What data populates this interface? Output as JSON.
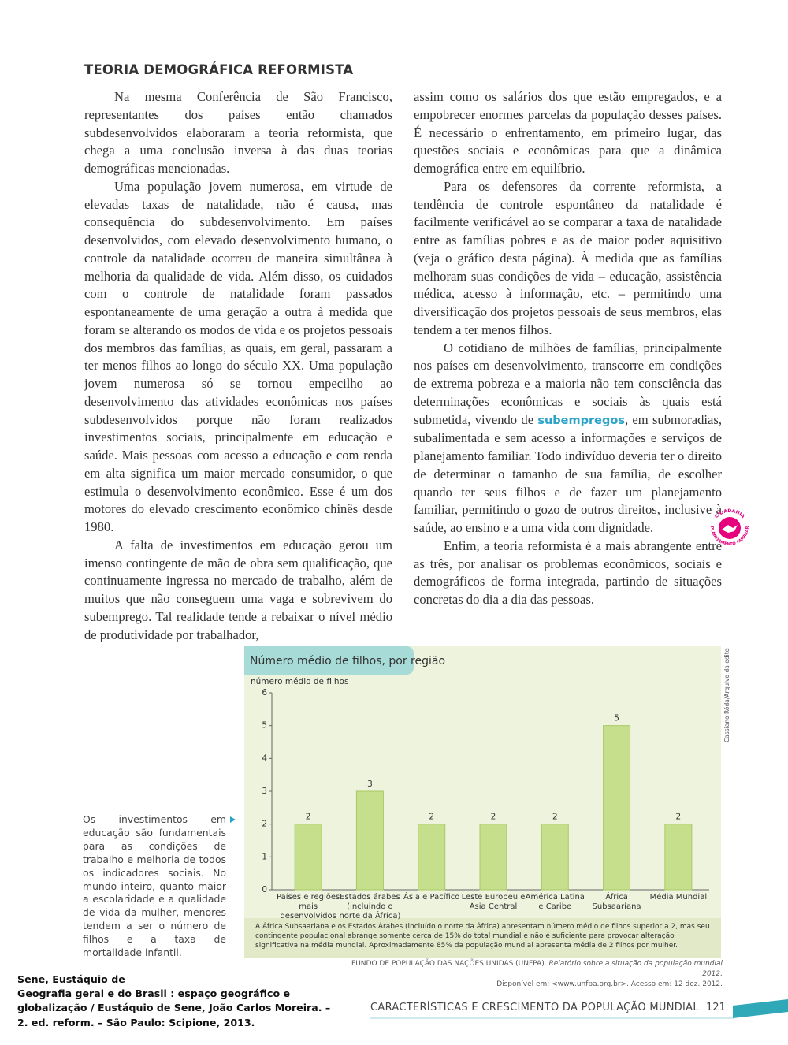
{
  "section_title": "TEORIA DEMOGRÁFICA REFORMISTA",
  "left_column": {
    "paragraphs": [
      "Na mesma Conferência de São Francisco, representantes dos países então chamados subdesenvolvidos elaboraram a teoria reformista, que chega a uma conclusão inversa à das duas teorias demográficas mencionadas.",
      "Uma população jovem numerosa, em virtude de elevadas taxas de natalidade, não é causa, mas consequência do subdesenvolvimento. Em países desenvolvidos, com elevado desenvolvimento humano, o controle da natalidade ocorreu de maneira simultânea à melhoria da qualidade de vida. Além disso, os cuidados com o controle de natalidade foram passados espontaneamente de uma geração a outra à medida que foram se alterando os modos de vida e os projetos pessoais dos membros das famílias, as quais, em geral, passaram a ter menos filhos ao longo do século XX. Uma população jovem numerosa só se tornou empecilho ao desenvolvimento das atividades econômicas nos países subdesenvolvidos porque não foram realizados investimentos sociais, principalmente em educação e saúde. Mais pessoas com acesso a educação e com renda em alta significa um maior mercado consumidor, o que estimula o desenvolvimento econômico. Esse é um dos motores do elevado crescimento econômico chinês desde 1980.",
      "A falta de investimentos em educação gerou um imenso contingente de mão de obra sem qualificação, que continuamente ingressa no mercado de trabalho, além de muitos que não conseguem uma vaga e sobrevivem do subemprego. Tal realidade tende a rebaixar o nível médio de produtividade por trabalhador,"
    ]
  },
  "right_column": {
    "paragraphs": [
      "assim como os salários dos que estão empregados, e a empobrecer enormes parcelas da população desses países. É necessário o enfrentamento, em primeiro lugar, das questões sociais e econômicas para que a dinâmica demográfica entre em equilíbrio.",
      "Para os defensores da corrente reformista, a tendência de controle espontâneo da natalidade é facilmente verificável ao se comparar a taxa de natalidade entre as famílias pobres e as de maior poder aquisitivo (veja o gráfico desta página). À medida que as famílias melhoram suas condições de vida – educação, assistência médica, acesso à informação, etc. – permitindo uma diversificação dos projetos pessoais de seus membros, elas tendem a ter menos filhos.",
      [
        "O cotidiano de milhões de famílias, principalmente nos países em desenvolvimento, transcorre em condições de extrema pobreza e a maioria não tem consciência das determinações econômicas e sociais às quais está submetida, vivendo de ",
        "subempregos",
        ", em submoradias, subalimentada e sem acesso a informações e serviços de planejamento familiar. Todo indivíduo deveria ter o direito de determinar o tamanho de sua família, de escolher quando ter seus filhos e de fazer um planejamento familiar, permitindo o gozo de outros direitos, inclusive à saúde, ao ensino e a uma vida com dignidade."
      ],
      "Enfim, a teoria reformista é a mais abrangente entre as três, por analisar os problemas econômicos, sociais e demográficos de forma integrada, partindo de situações concretas do dia a dia das pessoas."
    ]
  },
  "stamp": {
    "top": "CIDADANIA",
    "bottom": "PLANEJAMENTO FAMILIAR"
  },
  "sidebar_note": "Os investimentos em educação são fundamentais para as condições de trabalho e melhoria de todos os indicadores sociais. No mundo inteiro, quanto maior a escolaridade e a qualidade de vida da mulher, menores tendem a ser o número de filhos e a taxa de mortalidade infantil.",
  "chart_data": {
    "type": "bar",
    "title": "Número médio de filhos, por região",
    "y_label": "número médio de filhos",
    "categories": [
      "Países e regiões mais desenvolvidos",
      "Estados árabes (incluindo o norte da África)",
      "Ásia e Pacífico",
      "Leste Europeu e Ásia Central",
      "América Latina e Caribe",
      "África Subsaariana",
      "Média Mundial"
    ],
    "values": [
      2,
      3,
      2,
      2,
      2,
      5,
      2
    ],
    "color": "#c6df8c",
    "ylim": [
      0,
      6
    ],
    "yticks": [
      0,
      1,
      2,
      3,
      4,
      5,
      6
    ],
    "grid": false,
    "note": "A África Subsaariana e os Estados Árabes (incluído o norte da África) apresentam número médio de filhos superior a 2, mas seu contingente populacional abrange somente cerca de 15% do total mundial e não é suficiente para provocar alteração significativa na média mundial. Aproximadamente 85% da população mundial apresenta média de 2 filhos por mulher."
  },
  "chart_credit": "Cassiano Röda/Arquivo da editora",
  "source": {
    "author": "FUNDO DE POPULAÇÃO DAS NAÇÕES UNIDAS (UNFPA).",
    "title": "Relatório sobre a situação da população mundial 2012.",
    "access": "Disponível em: <www.unfpa.org.br>. Acesso em: 12 dez. 2012."
  },
  "citation": [
    "Sene, Eustáquio de",
    "Geografia geral e do Brasil : espaço geográfico e",
    "globalização / Eustáquio de Sene, João Carlos Moreira. –",
    "2. ed. reform. – São Paulo: Scipione, 2013."
  ],
  "footer": {
    "title": "CARACTERÍSTICAS E CRESCIMENTO DA POPULAÇÃO MUNDIAL",
    "page": "121"
  }
}
